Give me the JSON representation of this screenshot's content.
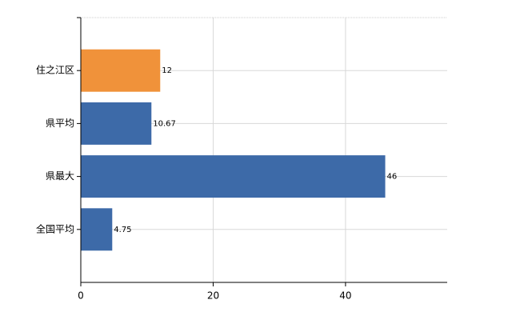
{
  "chart_data": {
    "type": "hbar",
    "categories": [
      "住之江区",
      "県平均",
      "県最大",
      "全国平均"
    ],
    "values": [
      12,
      10.67,
      46,
      4.75
    ],
    "colors": [
      "#f0923a",
      "#3d6aa8",
      "#3d6aa8",
      "#3d6aa8"
    ],
    "xlim": [
      0,
      55
    ],
    "xticks": [
      0,
      20,
      40
    ],
    "grid": true
  }
}
